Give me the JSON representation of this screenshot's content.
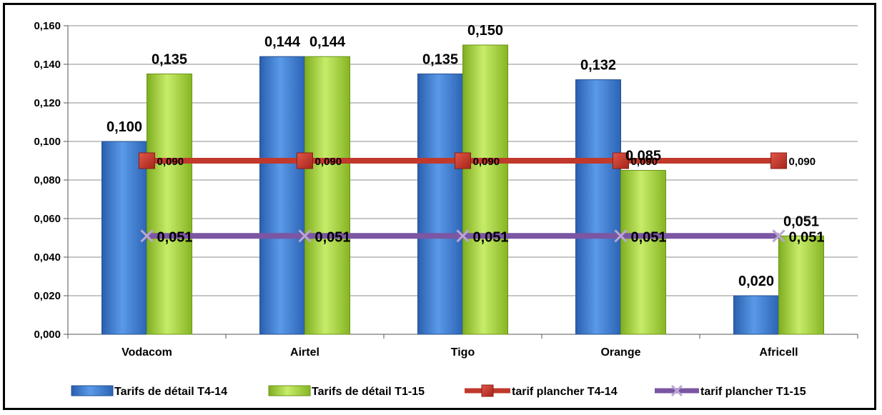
{
  "chart_data": {
    "type": "bar",
    "categories": [
      "Vodacom",
      "Airtel",
      "Tigo",
      "Orange",
      "Africell"
    ],
    "ylim": [
      0,
      0.16
    ],
    "yticks": [
      "0,000",
      "0,020",
      "0,040",
      "0,060",
      "0,080",
      "0,100",
      "0,120",
      "0,140",
      "0,160"
    ],
    "grid": true,
    "legend_position": "bottom",
    "series": [
      {
        "name": "Tarifs de détail T4-14",
        "kind": "bar",
        "color": "#3f7fd3",
        "values": [
          0.1,
          0.144,
          0.135,
          0.132,
          0.02
        ],
        "labels": [
          "0,100",
          "0,144",
          "0,135",
          "0,132",
          "0,020"
        ]
      },
      {
        "name": "Tarifs de détail T1-15",
        "kind": "bar",
        "color": "#a4d13b",
        "values": [
          0.135,
          0.144,
          0.15,
          0.085,
          0.051
        ],
        "labels": [
          "0,135",
          "0,144",
          "0,150",
          "0,085",
          "0,051"
        ]
      },
      {
        "name": "tarif plancher T4-14",
        "kind": "line",
        "color": "#c0392b",
        "marker": "square",
        "values": [
          0.09,
          0.09,
          0.09,
          0.09,
          0.09
        ],
        "labels": [
          "0,090",
          "0,090",
          "0,090",
          "0,090",
          "0,090"
        ]
      },
      {
        "name": "tarif plancher T1-15",
        "kind": "line",
        "color": "#7b56a3",
        "marker": "x",
        "values": [
          0.051,
          0.051,
          0.051,
          0.051,
          0.051
        ],
        "labels": [
          "0,051",
          "0,051",
          "0,051",
          "0,051",
          "0,051"
        ]
      }
    ]
  }
}
